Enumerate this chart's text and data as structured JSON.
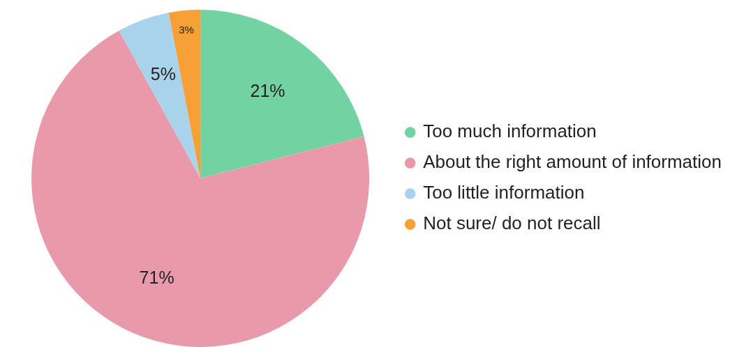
{
  "chart_data": {
    "type": "pie",
    "categories": [
      "Too much information",
      "About the right amount of information",
      "Too little information",
      "Not sure/ do not recall"
    ],
    "values": [
      21,
      71,
      5,
      3
    ],
    "colors": [
      "#72d2a2",
      "#e899aa",
      "#a9d3ea",
      "#f7a035"
    ],
    "value_labels": [
      "21%",
      "71%",
      "5%",
      "3%"
    ],
    "legend": "right"
  }
}
